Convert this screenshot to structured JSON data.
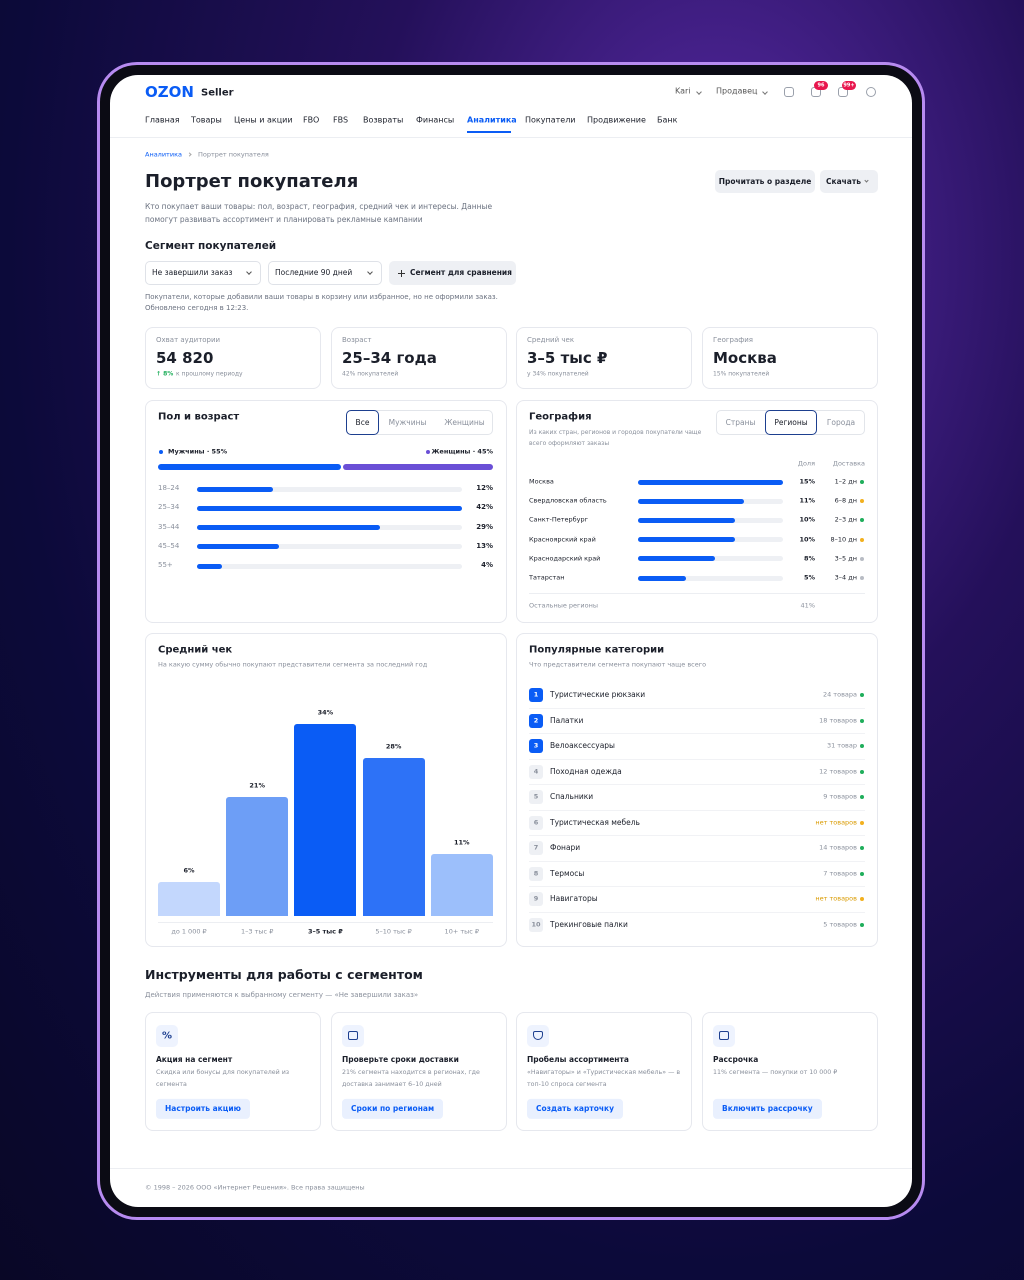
{
  "header": {
    "logo": "OZON",
    "logo_sub": "Seller",
    "account": "Kari",
    "role": "Продавец",
    "badges": [
      "96",
      "99+"
    ]
  },
  "nav": {
    "items": [
      "Главная",
      "Товары",
      "Цены и акции",
      "FBO",
      "FBS",
      "Возвраты",
      "Финансы",
      "Аналитика",
      "Покупатели",
      "Продвижение",
      "Банк"
    ],
    "active": 7
  },
  "breadcrumbs": [
    "Аналитика",
    "Портрет покупателя"
  ],
  "page": {
    "title": "Портрет покупателя",
    "description": "Кто покупает ваши товары: пол, возраст, география, средний чек и интересы. Данные помогут развивать ассортимент и планировать рекламные кампании",
    "buttons": [
      "Прочитать о разделе",
      "Скачать"
    ]
  },
  "segment": {
    "title": "Сегмент покупателей",
    "filters": [
      "Не завершили заказ",
      "Последние 90 дней"
    ],
    "compare": "Сегмент для сравнения",
    "note": "Покупатели, которые добавили ваши товары в корзину или избранное, но не оформили заказ.",
    "updated": "Обновлено сегодня в 12:23."
  },
  "kpis": [
    {
      "label": "Охват аудитории",
      "value": "54 820",
      "delta": "↑ 8%",
      "sub": "к прошлому периоду"
    },
    {
      "label": "Возраст",
      "value": "25–34 года",
      "sub": "42% покупателей"
    },
    {
      "label": "Средний чек",
      "value": "3–5 тыс ₽",
      "sub": "у 34% покупателей"
    },
    {
      "label": "География",
      "value": "Москва",
      "sub": "15% покупателей"
    }
  ],
  "gender_age": {
    "title": "Пол и возраст",
    "tabs": [
      "Все",
      "Мужчины",
      "Женщины"
    ],
    "active_tab": 0,
    "gender": [
      {
        "name": "Мужчины · 55%",
        "value": 55,
        "color": "#0a5cf5"
      },
      {
        "name": "Женщины · 45%",
        "value": 45,
        "color": "#6a4fd6"
      }
    ],
    "categories": [
      "18–24",
      "25–34",
      "35–44",
      "45–54",
      "55+"
    ],
    "values": [
      12,
      42,
      29,
      13,
      4
    ],
    "value_labels": [
      "12%",
      "42%",
      "29%",
      "13%",
      "4%"
    ],
    "xlim": [
      0,
      42
    ],
    "color": "#0a5cf5"
  },
  "geography": {
    "title": "География",
    "subtitle": "Из каких стран, регионов и городов покупатели чаще всего оформляют заказы",
    "tabs": [
      "Страны",
      "Регионы",
      "Города"
    ],
    "active_tab": 1,
    "columns": [
      "Доля",
      "Доставка"
    ],
    "categories": [
      "Москва",
      "Свердловская область",
      "Санкт-Петербург",
      "Красноярский край",
      "Краснодарский край",
      "Татарстан"
    ],
    "values": [
      15,
      11,
      10,
      10,
      8,
      5
    ],
    "value_labels": [
      "15%",
      "11%",
      "10%",
      "10%",
      "8%",
      "5%"
    ],
    "xlim": [
      0,
      15
    ],
    "color": "#0a5cf5",
    "delivery": [
      "1–2 дн",
      "6–8 дн",
      "2–3 дн",
      "8–10 дн",
      "3–5 дн",
      "3–4 дн"
    ],
    "delivery_colors": [
      "#1fae5b",
      "#f2b01e",
      "#1fae5b",
      "#f2b01e",
      "#b8bcc4",
      "#b8bcc4"
    ],
    "other": {
      "name": "Остальные регионы",
      "value": 41,
      "value_label": "41%"
    }
  },
  "avg_check": {
    "type": "bar",
    "title": "Средний чек",
    "subtitle": "На какую сумму обычно покупают представители сегмента за последний год",
    "categories": [
      "до 1 000 ₽",
      "1–3 тыс ₽",
      "3–5 тыс ₽",
      "5–10 тыс ₽",
      "10+ тыс ₽"
    ],
    "values": [
      6,
      21,
      34,
      28,
      11
    ],
    "value_labels": [
      "6%",
      "21%",
      "34%",
      "28%",
      "11%"
    ],
    "colors": [
      "#c3d7fd",
      "#6d9ef6",
      "#0a5cf5",
      "#2d72f7",
      "#9cbffb"
    ],
    "highlight": 2,
    "ylim": [
      0,
      34
    ]
  },
  "popular": {
    "title": "Популярные категории",
    "subtitle": "Что представители сегмента покупают чаще всего",
    "items": [
      {
        "rank": "1",
        "name": "Туристические рюкзаки",
        "count": "24 товара",
        "status": "#1fae5b",
        "highlight": true
      },
      {
        "rank": "2",
        "name": "Палатки",
        "count": "18 товаров",
        "status": "#1fae5b",
        "highlight": true
      },
      {
        "rank": "3",
        "name": "Велоаксессуары",
        "count": "31 товар",
        "status": "#1fae5b",
        "highlight": true
      },
      {
        "rank": "4",
        "name": "Походная одежда",
        "count": "12 товаров",
        "status": "#1fae5b"
      },
      {
        "rank": "5",
        "name": "Спальники",
        "count": "9 товаров",
        "status": "#1fae5b"
      },
      {
        "rank": "6",
        "name": "Туристическая мебель",
        "count": "нет товаров",
        "status": "#f2b01e"
      },
      {
        "rank": "7",
        "name": "Фонари",
        "count": "14 товаров",
        "status": "#1fae5b"
      },
      {
        "rank": "8",
        "name": "Термосы",
        "count": "7 товаров",
        "status": "#1fae5b"
      },
      {
        "rank": "9",
        "name": "Навигаторы",
        "count": "нет товаров",
        "status": "#f2b01e"
      },
      {
        "rank": "10",
        "name": "Трекинговые палки",
        "count": "5 товаров",
        "status": "#1fae5b"
      }
    ]
  },
  "tools": {
    "title": "Инструменты для работы с сегментом",
    "subtitle": "Действия применяются к выбранному сегменту — «Не завершили заказ»",
    "cards": [
      {
        "icon": "%",
        "title": "Акция на сегмент",
        "text": "Скидка или бонусы для покупателей из сегмента",
        "button": "Настроить акцию"
      },
      {
        "title": "Проверьте сроки доставки",
        "text": "21% сегмента находится в регионах, где доставка занимает 6–10 дней",
        "button": "Сроки по регионам"
      },
      {
        "title": "Пробелы ассортимента",
        "text": "«Навигаторы» и «Туристическая мебель» — в топ-10 спроса сегмента",
        "button": "Создать карточку"
      },
      {
        "title": "Рассрочка",
        "text": "11% сегмента — покупки от 10 000 ₽",
        "button": "Включить рассрочку"
      }
    ]
  },
  "footer": "© 1998 – 2026 ООО «Интернет Решения». Все права защищены"
}
